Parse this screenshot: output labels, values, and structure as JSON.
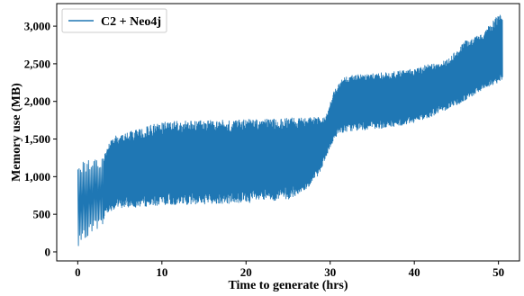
{
  "chart_data": {
    "type": "line",
    "title": "",
    "xlabel": "Time to generate (hrs)",
    "ylabel": "Memory use (MB)",
    "xlim": [
      -2.5,
      52.5
    ],
    "ylim": [
      -120,
      3300
    ],
    "x_ticks": [
      0,
      10,
      20,
      30,
      40,
      50
    ],
    "y_ticks": [
      0,
      500,
      1000,
      1500,
      2000,
      2500,
      3000
    ],
    "y_tick_labels": [
      "0",
      "500",
      "1,000",
      "1,500",
      "2,000",
      "2,500",
      "3,000"
    ],
    "legend": {
      "position": "top-left",
      "entries": [
        "C2 + Neo4j"
      ]
    },
    "grid": false,
    "series": [
      {
        "name": "C2 + Neo4j",
        "color": "#1f77b4",
        "upper_envelope": {
          "x": [
            0.0,
            0.5,
            1.0,
            1.5,
            2.0,
            3.0,
            3.2,
            4.0,
            5.0,
            10.0,
            20.0,
            25.0,
            27.0,
            28.5,
            29.5,
            30.5,
            31.0,
            32.0,
            34.0,
            36.0,
            38.0,
            40.0,
            42.0,
            44.0,
            46.0,
            48.0,
            50.0,
            50.5
          ],
          "y": [
            1200,
            1200,
            1220,
            1230,
            1230,
            1240,
            1320,
            1520,
            1560,
            1730,
            1760,
            1780,
            1780,
            1790,
            1800,
            2150,
            2250,
            2350,
            2360,
            2380,
            2400,
            2450,
            2500,
            2560,
            2800,
            2900,
            3150,
            3170
          ]
        },
        "lower_envelope": {
          "x": [
            0.0,
            0.5,
            1.0,
            1.5,
            2.0,
            3.0,
            3.2,
            4.0,
            5.0,
            10.0,
            20.0,
            25.0,
            27.0,
            28.5,
            29.5,
            30.5,
            31.0,
            32.0,
            34.0,
            36.0,
            38.0,
            40.0,
            42.0,
            44.0,
            46.0,
            48.0,
            50.0,
            50.5
          ],
          "y": [
            30,
            100,
            200,
            260,
            300,
            330,
            500,
            550,
            580,
            620,
            650,
            700,
            800,
            1000,
            1250,
            1500,
            1580,
            1600,
            1620,
            1640,
            1670,
            1720,
            1800,
            1900,
            2000,
            2150,
            2250,
            2300
          ]
        }
      }
    ]
  }
}
